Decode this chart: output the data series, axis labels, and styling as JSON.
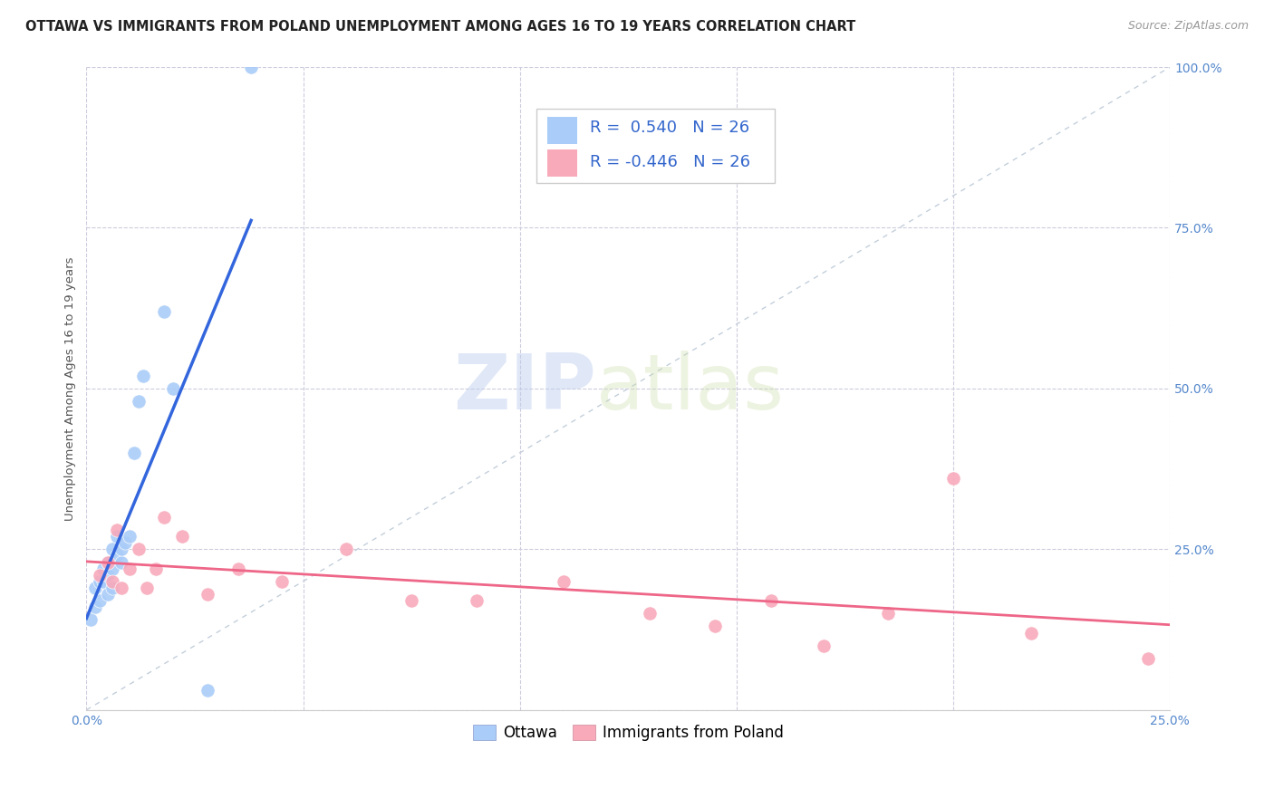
{
  "title": "OTTAWA VS IMMIGRANTS FROM POLAND UNEMPLOYMENT AMONG AGES 16 TO 19 YEARS CORRELATION CHART",
  "source": "Source: ZipAtlas.com",
  "ylabel": "Unemployment Among Ages 16 to 19 years",
  "xlim": [
    0.0,
    0.25
  ],
  "ylim": [
    0.0,
    1.0
  ],
  "xticks": [
    0.0,
    0.05,
    0.1,
    0.15,
    0.2,
    0.25
  ],
  "yticks": [
    0.0,
    0.25,
    0.5,
    0.75,
    1.0
  ],
  "xticklabels": [
    "0.0%",
    "",
    "",
    "",
    "",
    "25.0%"
  ],
  "yticklabels": [
    "",
    "25.0%",
    "50.0%",
    "75.0%",
    "100.0%"
  ],
  "ottawa_R": 0.54,
  "ottawa_N": 26,
  "poland_R": -0.446,
  "poland_N": 26,
  "ottawa_color": "#aaccf8",
  "poland_color": "#f8aabb",
  "ottawa_line_color": "#3366dd",
  "poland_line_color": "#ee6688",
  "diag_line_color": "#aabbcc",
  "watermark_zip": "ZIP",
  "watermark_atlas": "atlas",
  "ottawa_x": [
    0.001,
    0.002,
    0.002,
    0.003,
    0.003,
    0.004,
    0.004,
    0.005,
    0.005,
    0.005,
    0.006,
    0.006,
    0.006,
    0.007,
    0.007,
    0.008,
    0.008,
    0.009,
    0.01,
    0.011,
    0.012,
    0.013,
    0.018,
    0.02,
    0.028,
    0.038
  ],
  "ottawa_y": [
    0.14,
    0.19,
    0.16,
    0.2,
    0.17,
    0.22,
    0.2,
    0.21,
    0.23,
    0.18,
    0.25,
    0.22,
    0.19,
    0.24,
    0.27,
    0.23,
    0.25,
    0.26,
    0.27,
    0.4,
    0.48,
    0.52,
    0.62,
    0.5,
    0.03,
    1.0
  ],
  "poland_x": [
    0.003,
    0.005,
    0.006,
    0.007,
    0.008,
    0.01,
    0.012,
    0.014,
    0.016,
    0.018,
    0.022,
    0.028,
    0.035,
    0.045,
    0.06,
    0.075,
    0.09,
    0.11,
    0.13,
    0.145,
    0.158,
    0.17,
    0.185,
    0.2,
    0.218,
    0.245
  ],
  "poland_y": [
    0.21,
    0.23,
    0.2,
    0.28,
    0.19,
    0.22,
    0.25,
    0.19,
    0.22,
    0.3,
    0.27,
    0.18,
    0.22,
    0.2,
    0.25,
    0.17,
    0.17,
    0.2,
    0.15,
    0.13,
    0.17,
    0.1,
    0.15,
    0.36,
    0.12,
    0.08
  ],
  "background_color": "#ffffff",
  "grid_color": "#ccccdd",
  "title_fontsize": 10.5,
  "axis_label_fontsize": 9.5,
  "tick_fontsize": 10,
  "legend_fontsize": 13
}
